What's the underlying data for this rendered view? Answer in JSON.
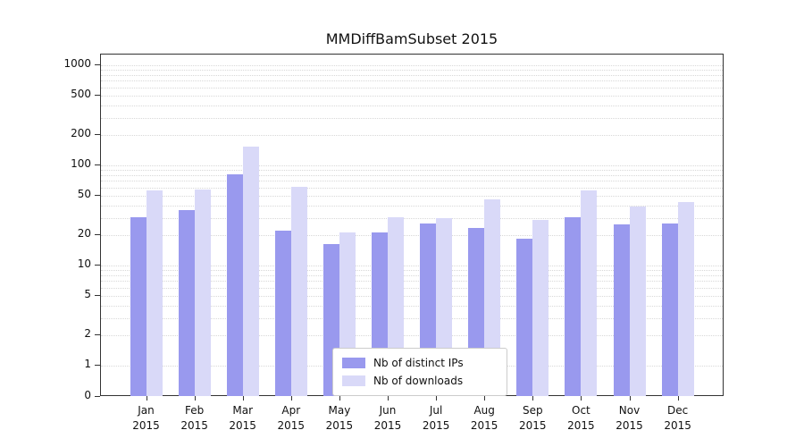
{
  "chart_data": {
    "type": "bar",
    "title": "MMDiffBamSubset 2015",
    "scale": "symlog",
    "ylim": [
      0,
      1000
    ],
    "yticks": [
      1000,
      500,
      200,
      100,
      50,
      20,
      10,
      5,
      2,
      1,
      0
    ],
    "grid": "horizontal-log-minor",
    "legend_position": "lower-center",
    "categories": [
      {
        "month": "Jan",
        "year": "2015"
      },
      {
        "month": "Feb",
        "year": "2015"
      },
      {
        "month": "Mar",
        "year": "2015"
      },
      {
        "month": "Apr",
        "year": "2015"
      },
      {
        "month": "May",
        "year": "2015"
      },
      {
        "month": "Jun",
        "year": "2015"
      },
      {
        "month": "Jul",
        "year": "2015"
      },
      {
        "month": "Aug",
        "year": "2015"
      },
      {
        "month": "Sep",
        "year": "2015"
      },
      {
        "month": "Oct",
        "year": "2015"
      },
      {
        "month": "Nov",
        "year": "2015"
      },
      {
        "month": "Dec",
        "year": "2015"
      }
    ],
    "series": [
      {
        "name": "Nb of distinct IPs",
        "color": "#9999ee",
        "values": [
          30,
          35,
          80,
          22,
          16,
          21,
          26,
          23,
          18,
          30,
          25,
          26
        ]
      },
      {
        "name": "Nb of downloads",
        "color": "#d9d9f8",
        "values": [
          55,
          56,
          150,
          60,
          21,
          30,
          29,
          45,
          28,
          55,
          38,
          42
        ]
      }
    ]
  }
}
